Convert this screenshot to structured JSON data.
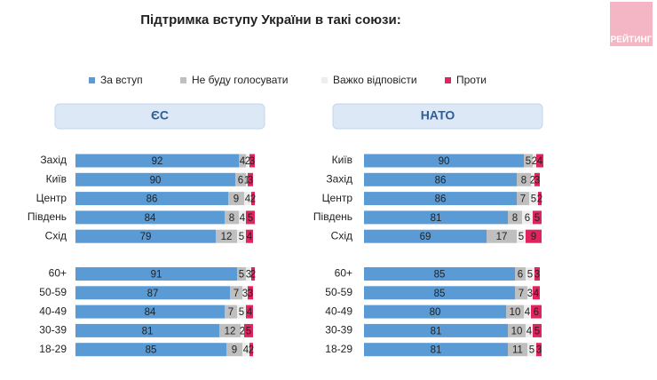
{
  "title": "Підтримка вступу України в такі союзи:",
  "logo": "РЕЙТИНГ",
  "chart_data": [
    {
      "type": "stacked-barh",
      "title": "ЄС",
      "categories": [
        "Захід",
        "Київ",
        "Центр",
        "Південь",
        "Схід",
        "60+",
        "50-59",
        "40-49",
        "30-39",
        "18-29"
      ],
      "series": [
        {
          "name": "За вступ",
          "color": "#5b9bd5",
          "values": [
            92,
            90,
            86,
            84,
            79,
            91,
            87,
            84,
            81,
            85
          ]
        },
        {
          "name": "Не буду голосувати",
          "color": "#bfbfbf",
          "values": [
            4,
            6,
            9,
            8,
            12,
            5,
            7,
            7,
            12,
            9
          ]
        },
        {
          "name": "Важко відповісти",
          "color": "#eeeeee",
          "values": [
            2,
            1,
            4,
            4,
            5,
            3,
            3,
            5,
            2,
            4
          ]
        },
        {
          "name": "Проти",
          "color": "#e0245e",
          "values": [
            3,
            3,
            2,
            5,
            4,
            2,
            3,
            4,
            5,
            2
          ]
        }
      ]
    },
    {
      "type": "stacked-barh",
      "title": "НАТО",
      "categories": [
        "Київ",
        "Захід",
        "Центр",
        "Південь",
        "Схід",
        "60+",
        "50-59",
        "40-49",
        "30-39",
        "18-29"
      ],
      "series": [
        {
          "color": "#5b9bd5",
          "values": [
            90,
            86,
            86,
            81,
            69,
            85,
            85,
            80,
            81,
            81
          ]
        },
        {
          "color": "#bfbfbf",
          "values": [
            5,
            8,
            7,
            8,
            17,
            6,
            7,
            10,
            10,
            11
          ]
        },
        {
          "color": "#eeeeee",
          "values": [
            2,
            2,
            5,
            6,
            5,
            5,
            3,
            4,
            4,
            5
          ]
        },
        {
          "color": "#e0245e",
          "values": [
            4,
            3,
            2,
            5,
            9,
            3,
            4,
            6,
            5,
            3
          ]
        }
      ]
    }
  ]
}
